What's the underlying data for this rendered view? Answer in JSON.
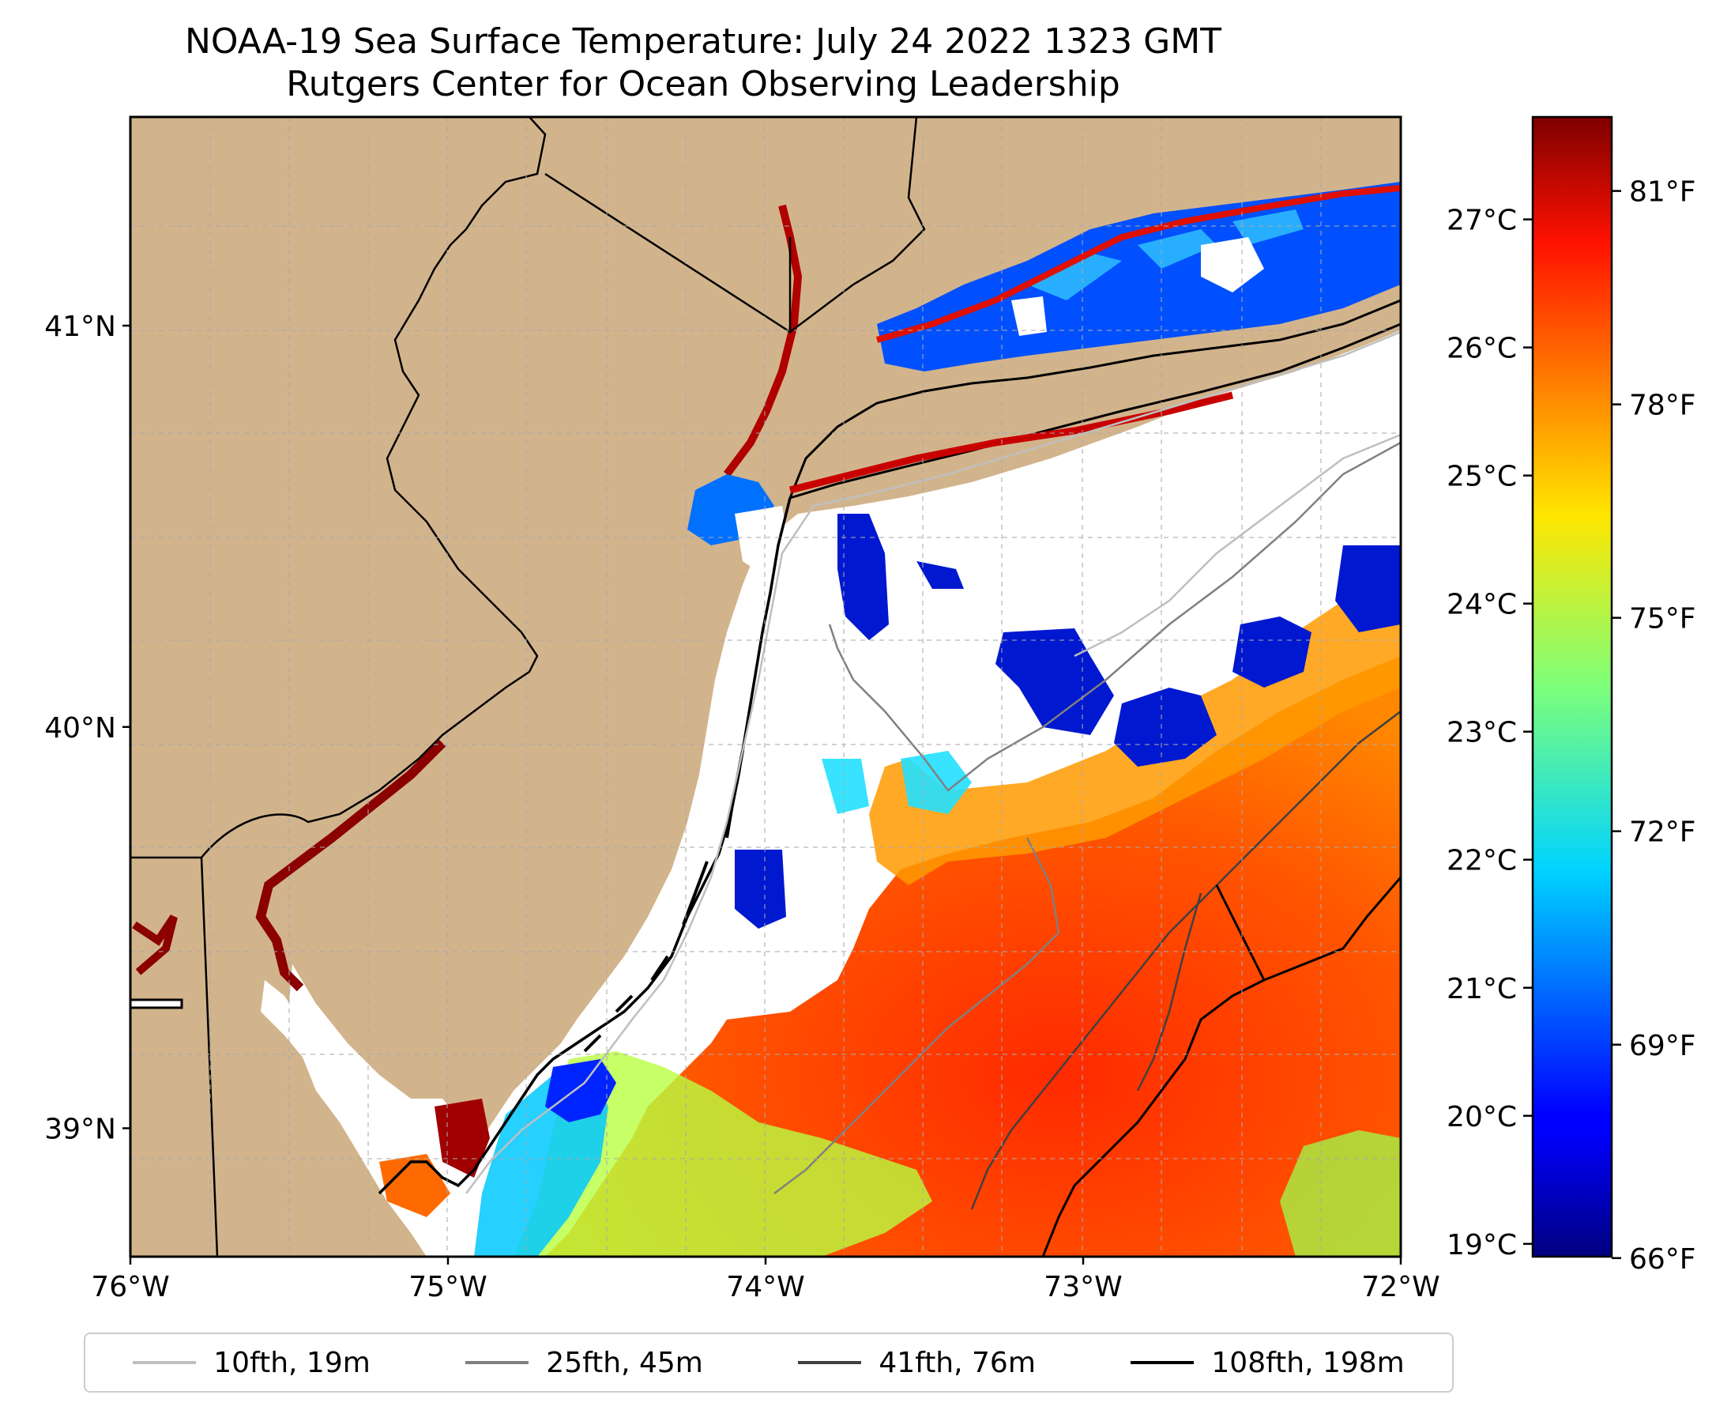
{
  "title": {
    "line1": "NOAA-19 Sea Surface Temperature: July 24 2022 1323 GMT",
    "line2": "Rutgers Center for Ocean Observing Leadership"
  },
  "map": {
    "lon_range": [
      -76,
      -72
    ],
    "lat_range": [
      38.68,
      41.52
    ],
    "lon_ticks": [
      {
        "value": -76,
        "label": "76°W"
      },
      {
        "value": -75,
        "label": "75°W"
      },
      {
        "value": -74,
        "label": "74°W"
      },
      {
        "value": -73,
        "label": "73°W"
      },
      {
        "value": -72,
        "label": "72°W"
      }
    ],
    "lat_ticks": [
      {
        "value": 41,
        "label": "41°N"
      },
      {
        "value": 40,
        "label": "40°N"
      },
      {
        "value": 39,
        "label": "39°N"
      }
    ],
    "gridlines": true,
    "land_color": "#d2b48c",
    "no_data_color": "#ffffff"
  },
  "colorbar": {
    "colormap": "jet",
    "celsius_ticks": [
      {
        "value": 19,
        "label": "19°C"
      },
      {
        "value": 20,
        "label": "20°C"
      },
      {
        "value": 21,
        "label": "21°C"
      },
      {
        "value": 22,
        "label": "22°C"
      },
      {
        "value": 23,
        "label": "23°C"
      },
      {
        "value": 24,
        "label": "24°C"
      },
      {
        "value": 25,
        "label": "25°C"
      },
      {
        "value": 26,
        "label": "26°C"
      },
      {
        "value": 27,
        "label": "27°C"
      }
    ],
    "fahrenheit_ticks": [
      {
        "value": 66,
        "label": "66°F"
      },
      {
        "value": 69,
        "label": "69°F"
      },
      {
        "value": 72,
        "label": "72°F"
      },
      {
        "value": 75,
        "label": "75°F"
      },
      {
        "value": 78,
        "label": "78°F"
      },
      {
        "value": 81,
        "label": "81°F"
      }
    ],
    "range_c": [
      18.9,
      27.8
    ]
  },
  "legend": {
    "entries": [
      {
        "label": "10fth, 19m",
        "color": "#bfbfbf"
      },
      {
        "label": "25fth, 45m",
        "color": "#808080"
      },
      {
        "label": "41fth, 76m",
        "color": "#404040"
      },
      {
        "label": "108fth, 198m",
        "color": "#000000"
      }
    ]
  }
}
